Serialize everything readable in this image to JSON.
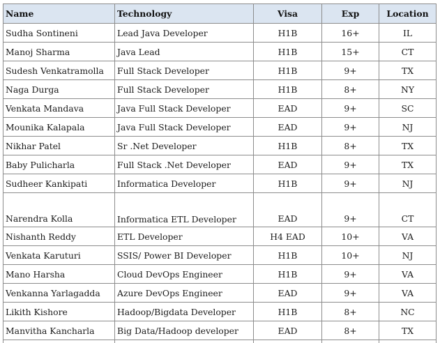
{
  "table": {
    "headers": {
      "name": "Name",
      "technology": "Technology",
      "visa": "Visa",
      "exp": "Exp",
      "location": "Location"
    },
    "rows": [
      {
        "name": "Sudha Sontineni",
        "technology": "Lead Java Developer",
        "visa": "H1B",
        "exp": "16+",
        "location": "IL"
      },
      {
        "name": "Manoj Sharma",
        "technology": "Java Lead",
        "visa": "H1B",
        "exp": "15+",
        "location": "CT"
      },
      {
        "name": "Sudesh Venkatramolla",
        "technology": "Full Stack Developer",
        "visa": "H1B",
        "exp": "9+",
        "location": "TX"
      },
      {
        "name": "Naga Durga",
        "technology": "Full Stack Developer",
        "visa": "H1B",
        "exp": "8+",
        "location": "NY"
      },
      {
        "name": "Venkata Mandava",
        "technology": "Java Full Stack Developer",
        "visa": "EAD",
        "exp": "9+",
        "location": "SC"
      },
      {
        "name": "Mounika Kalapala",
        "technology": "Java Full Stack Developer",
        "visa": "EAD",
        "exp": "9+",
        "location": "NJ"
      },
      {
        "name": "Nikhar Patel",
        "technology": "Sr .Net Developer",
        "visa": "H1B",
        "exp": "8+",
        "location": "TX"
      },
      {
        "name": "Baby Pulicharla",
        "technology": "Full Stack .Net Developer",
        "visa": "EAD",
        "exp": "9+",
        "location": "TX"
      },
      {
        "name": "Sudheer Kankipati",
        "technology": "Informatica Developer",
        "visa": "H1B",
        "exp": "9+",
        "location": "NJ"
      },
      {
        "name": "Narendra Kolla",
        "technology": "Informatica ETL Developer",
        "visa": "EAD",
        "exp": "9+",
        "location": "CT"
      },
      {
        "name": "Nishanth Reddy",
        "technology": "ETL Developer",
        "visa": "H4 EAD",
        "exp": "10+",
        "location": "VA"
      },
      {
        "name": "Venkata Karuturi",
        "technology": "SSIS/ Power BI Developer",
        "visa": "H1B",
        "exp": "10+",
        "location": "NJ"
      },
      {
        "name": "Mano Harsha",
        "technology": "Cloud DevOps Engineer",
        "visa": "H1B",
        "exp": "9+",
        "location": "VA"
      },
      {
        "name": "Venkanna Yarlagadda",
        "technology": "Azure DevOps Engineer",
        "visa": "EAD",
        "exp": "9+",
        "location": "VA"
      },
      {
        "name": "Likith Kishore",
        "technology": "Hadoop/Bigdata Developer",
        "visa": "H1B",
        "exp": "8+",
        "location": "NC"
      },
      {
        "name": "Manvitha Kancharla",
        "technology": "Big Data/Hadoop developer",
        "visa": "EAD",
        "exp": "8+",
        "location": "TX"
      }
    ]
  }
}
